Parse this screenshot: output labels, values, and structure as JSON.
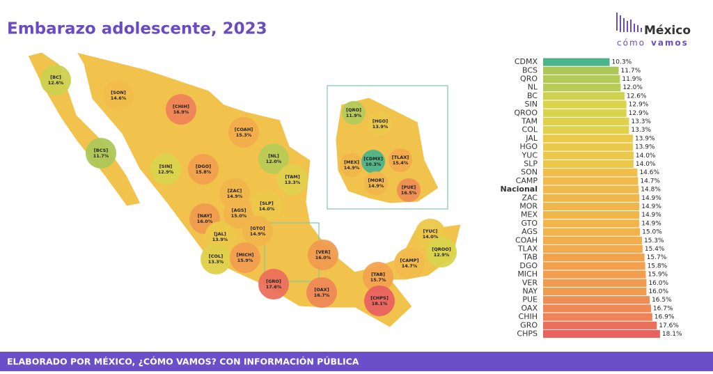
{
  "header": {
    "title": "Embarazo adolescente, 2023"
  },
  "logo": {
    "name": "México",
    "tagline_a": "cómo",
    "tagline_b": "vamos"
  },
  "chart_data": [
    {
      "type": "map",
      "regions": [
        "[BC]",
        "[SON]",
        "[CHIH]",
        "[COAH]",
        "[BCS]",
        "[NL]",
        "[SIN]",
        "[DGO]",
        "[TAM]",
        "[ZAC]",
        "[AGS]",
        "[SLP]",
        "[NAY]",
        "[JAL]",
        "[GTO]",
        "[COL]",
        "[MICH]",
        "[VER]",
        "[GRO]",
        "[OAX]",
        "[TAB]",
        "[CHPS]",
        "[CAMP]",
        "[YUC]",
        "[QROO]",
        "[QRO]",
        "[HGO]",
        "[MEX]",
        "[CDMX]",
        "[TLAX]",
        "[MOR]",
        "[PUE]"
      ],
      "values": [
        12.6,
        14.6,
        16.9,
        15.3,
        11.7,
        12.0,
        12.9,
        15.8,
        13.3,
        14.9,
        15.0,
        14.0,
        16.0,
        13.9,
        14.9,
        13.3,
        15.9,
        16.0,
        17.6,
        16.7,
        15.7,
        18.1,
        14.7,
        14.0,
        12.9,
        11.9,
        13.9,
        14.9,
        10.3,
        15.4,
        14.9,
        16.5
      ],
      "value_labels": [
        "12.6%",
        "14.6%",
        "16.9%",
        "15.3%",
        "11.7%",
        "12.0%",
        "12.9%",
        "15.8%",
        "13.3%",
        "14.9%",
        "15.0%",
        "14.0%",
        "16.0%",
        "13.9%",
        "14.9%",
        "13.3%",
        "15.9%",
        "16.0%",
        "17.6%",
        "16.7%",
        "15.7%",
        "18.1%",
        "14.7%",
        "14.0%",
        "12.9%",
        "11.9%",
        "13.9%",
        "14.9%",
        "10.3%",
        "15.4%",
        "14.9%",
        "16.5%"
      ],
      "color_stops": [
        "#4cb48a",
        "#a9c75a",
        "#d9d44c",
        "#f0c64a",
        "#f2a84c",
        "#ee8656",
        "#e8625f"
      ]
    },
    {
      "type": "bar",
      "orientation": "horizontal",
      "categories": [
        "CDMX",
        "BCS",
        "QRO",
        "NL",
        "BC",
        "SIN",
        "QROO",
        "TAM",
        "COL",
        "JAL",
        "HGO",
        "YUC",
        "SLP",
        "SON",
        "CAMP",
        "Nacional",
        "ZAC",
        "MOR",
        "MEX",
        "GTO",
        "AGS",
        "COAH",
        "TLAX",
        "TAB",
        "DGO",
        "MICH",
        "VER",
        "NAY",
        "PUE",
        "OAX",
        "CHIH",
        "GRO",
        "CHPS"
      ],
      "values": [
        10.3,
        11.7,
        11.9,
        12.0,
        12.6,
        12.9,
        12.9,
        13.3,
        13.3,
        13.9,
        13.9,
        14.0,
        14.0,
        14.6,
        14.7,
        14.8,
        14.9,
        14.9,
        14.9,
        14.9,
        15.0,
        15.3,
        15.4,
        15.7,
        15.8,
        15.9,
        16.0,
        16.0,
        16.5,
        16.7,
        16.9,
        17.6,
        18.1
      ],
      "value_labels": [
        "10.3%",
        "11.7%",
        "11.9%",
        "12.0%",
        "12.6%",
        "12.9%",
        "12.9%",
        "13.3%",
        "13.3%",
        "13.9%",
        "13.9%",
        "14.0%",
        "14.0%",
        "14.6%",
        "14.7%",
        "14.8%",
        "14.9%",
        "14.9%",
        "14.9%",
        "14.9%",
        "15.0%",
        "15.3%",
        "15.4%",
        "15.7%",
        "15.8%",
        "15.9%",
        "16.0%",
        "16.0%",
        "16.5%",
        "16.7%",
        "16.9%",
        "17.6%",
        "18.1%"
      ],
      "xlim": [
        0,
        26.3
      ],
      "highlight": "Nacional",
      "highlight_color": "#e8625f",
      "color_stops": [
        "#4cb48a",
        "#a9c75a",
        "#d9d44c",
        "#f0c64a",
        "#f2a84c",
        "#ee8656",
        "#e8625f"
      ]
    }
  ],
  "footer": {
    "text": "ELABORADO POR MÉXICO, ¿CÓMO VAMOS? CON INFORMACIÓN PÚBLICA"
  }
}
